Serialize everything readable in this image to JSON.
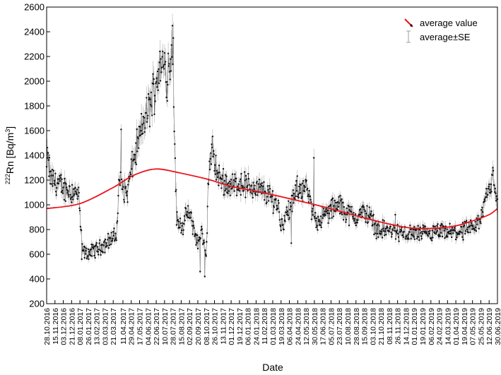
{
  "chart_data": {
    "type": "line",
    "xlabel": "Date",
    "ylabel_prefix": "222",
    "ylabel_main": "Rn [Bq/m",
    "ylabel_exp": "3",
    "ylabel_suffix": "]",
    "ylim": [
      200,
      2600
    ],
    "yticks": [
      200,
      400,
      600,
      800,
      1000,
      1200,
      1400,
      1600,
      1800,
      2000,
      2200,
      2400,
      2600
    ],
    "grid": false,
    "legend_position": "top-right",
    "legend": [
      {
        "label": "average value",
        "color": "#e8141a"
      },
      {
        "label": "average±SE",
        "color": "#9e9e9e"
      }
    ],
    "x_start": "28.10.2016",
    "x_end": "30.06.2019",
    "date_ticks": [
      "28.10.2016",
      "15.11.2016",
      "03.12.2016",
      "21.12.2016",
      "08.01.2017",
      "26.01.2017",
      "13.02.2017",
      "03.03.2017",
      "21.03.2017",
      "11.04.2017",
      "29.04.2017",
      "17.05.2017",
      "04.06.2017",
      "22.06.2017",
      "10.07.2017",
      "28.07.2017",
      "15.08.2017",
      "02.09.2017",
      "20.09.2017",
      "08.10.2017",
      "26.10.2017",
      "13.11.2017",
      "01.12.2017",
      "19.12.2017",
      "06.01.2018",
      "24.01.2018",
      "11.02.2018",
      "01.03.2018",
      "19.03.2018",
      "06.04.2018",
      "24.04.2018",
      "12.05.2018",
      "30.05.2018",
      "17.06.2018",
      "05.07.2018",
      "23.07.2018",
      "10.08.2018",
      "28.08.2018",
      "15.09.2018",
      "03.10.2018",
      "21.10.2018",
      "08.11.2018",
      "26.11.2018",
      "14.12.2018",
      "01.01.2019",
      "19.01.2019",
      "06.02.2019",
      "24.02.2019",
      "14.03.2019",
      "01.04.2019",
      "19.04.2019",
      "07.05.2019",
      "25.05.2019",
      "12.06.2019",
      "30.06.2019"
    ],
    "series": [
      {
        "name": "average value",
        "color": "#e8141a",
        "points": [
          [
            "28.10.2016",
            970
          ],
          [
            "08.01.2017",
            1010
          ],
          [
            "21.03.2017",
            1140
          ],
          [
            "29.04.2017",
            1230
          ],
          [
            "04.06.2017",
            1280
          ],
          [
            "28.06.2017",
            1290
          ],
          [
            "28.07.2017",
            1270
          ],
          [
            "08.10.2017",
            1210
          ],
          [
            "01.12.2017",
            1150
          ],
          [
            "06.02.2018",
            1100
          ],
          [
            "06.04.2018",
            1050
          ],
          [
            "12.06.2018",
            990
          ],
          [
            "10.08.2018",
            930
          ],
          [
            "10.10.2018",
            870
          ],
          [
            "26.11.2018",
            830
          ],
          [
            "01.01.2019",
            810
          ],
          [
            "14.02.2019",
            810
          ],
          [
            "01.04.2019",
            830
          ],
          [
            "07.05.2019",
            870
          ],
          [
            "12.06.2019",
            920
          ],
          [
            "30.06.2019",
            970
          ]
        ]
      },
      {
        "name": "average±SE",
        "color": "#9e9e9e",
        "marker_color": "#111111",
        "anchors": [
          [
            "28.10.2016",
            1300
          ],
          [
            "30.10.2016",
            1400
          ],
          [
            "05.11.2016",
            1220
          ],
          [
            "01.12.2016",
            1140
          ],
          [
            "30.12.2016",
            1100
          ],
          [
            "06.01.2017",
            1060
          ],
          [
            "12.01.2017",
            660
          ],
          [
            "20.01.2017",
            600
          ],
          [
            "13.02.2017",
            640
          ],
          [
            "03.03.2017",
            680
          ],
          [
            "14.03.2017",
            720
          ],
          [
            "28.03.2017",
            750
          ],
          [
            "03.04.2017",
            1210
          ],
          [
            "11.04.2017",
            1140
          ],
          [
            "20.04.2017",
            1090
          ],
          [
            "29.04.2017",
            1280
          ],
          [
            "12.05.2017",
            1480
          ],
          [
            "25.05.2017",
            1650
          ],
          [
            "10.06.2017",
            1820
          ],
          [
            "25.06.2017",
            2050
          ],
          [
            "03.07.2017",
            2140
          ],
          [
            "15.07.2017",
            2050
          ],
          [
            "28.07.2017",
            2250
          ],
          [
            "31.07.2017",
            1650
          ],
          [
            "05.08.2017",
            880
          ],
          [
            "20.08.2017",
            820
          ],
          [
            "28.08.2017",
            950
          ],
          [
            "10.09.2017",
            830
          ],
          [
            "20.09.2017",
            680
          ],
          [
            "28.09.2017",
            800
          ],
          [
            "08.10.2017",
            560
          ],
          [
            "13.10.2017",
            1250
          ],
          [
            "22.10.2017",
            1420
          ],
          [
            "03.11.2017",
            1220
          ],
          [
            "01.12.2017",
            1150
          ],
          [
            "19.12.2017",
            1180
          ],
          [
            "24.01.2018",
            1130
          ],
          [
            "11.02.2018",
            1100
          ],
          [
            "01.03.2018",
            1050
          ],
          [
            "13.03.2018",
            990
          ],
          [
            "19.03.2018",
            840
          ],
          [
            "06.04.2018",
            960
          ],
          [
            "24.04.2018",
            1130
          ],
          [
            "12.05.2018",
            1140
          ],
          [
            "24.05.2018",
            960
          ],
          [
            "05.06.2018",
            870
          ],
          [
            "17.06.2018",
            900
          ],
          [
            "05.07.2018",
            960
          ],
          [
            "23.07.2018",
            1000
          ],
          [
            "10.08.2018",
            930
          ],
          [
            "28.08.2018",
            900
          ],
          [
            "15.09.2018",
            940
          ],
          [
            "30.09.2018",
            900
          ],
          [
            "10.10.2018",
            810
          ],
          [
            "26.11.2018",
            780
          ],
          [
            "14.12.2018",
            760
          ],
          [
            "01.01.2019",
            770
          ],
          [
            "06.02.2019",
            760
          ],
          [
            "24.02.2019",
            780
          ],
          [
            "14.03.2019",
            770
          ],
          [
            "01.04.2019",
            780
          ],
          [
            "07.05.2019",
            800
          ],
          [
            "25.05.2019",
            880
          ],
          [
            "05.06.2019",
            1100
          ],
          [
            "12.06.2019",
            1150
          ],
          [
            "22.06.2019",
            1180
          ],
          [
            "30.06.2019",
            1000
          ]
        ],
        "extremes": [
          [
            "31.10.2016",
            1420
          ],
          [
            "07.04.2017",
            1610
          ],
          [
            "10.07.2017",
            2230
          ],
          [
            "27.07.2017",
            2450
          ],
          [
            "29.07.2017",
            2350
          ],
          [
            "25.09.2017",
            460
          ],
          [
            "05.10.2017",
            420
          ],
          [
            "20.10.2017",
            1490
          ],
          [
            "12.01.2017",
            560
          ],
          [
            "29.05.2018",
            1380
          ],
          [
            "10.04.2018",
            690
          ],
          [
            "21.11.2018",
            920
          ],
          [
            "20.06.2019",
            1300
          ]
        ]
      }
    ]
  }
}
